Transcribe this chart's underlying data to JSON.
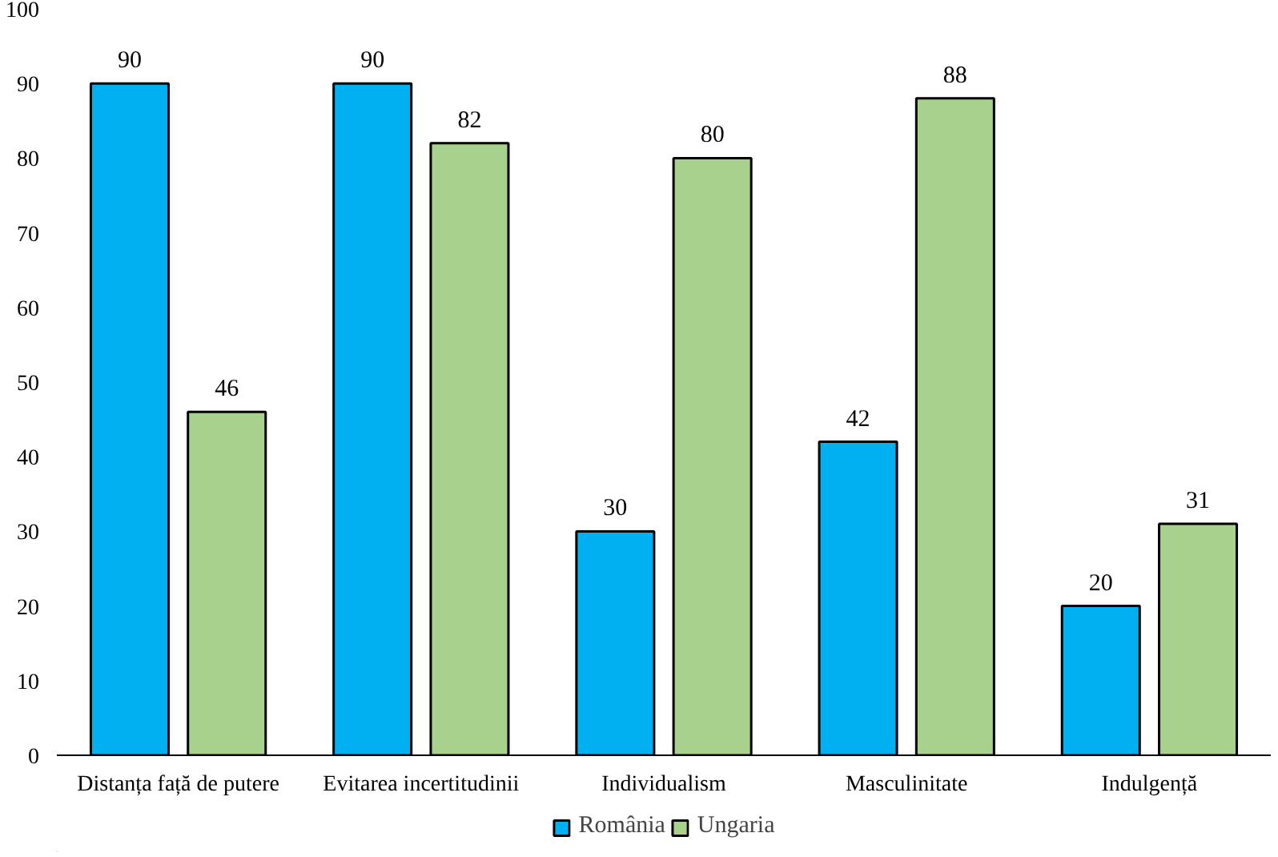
{
  "chart_data": {
    "type": "bar",
    "categories": [
      "Distanța față de putere",
      "Evitarea incertitudinii",
      "Individualism",
      "Masculinitate",
      "Indulgență"
    ],
    "series": [
      {
        "name": "România",
        "color": "#00b0f0",
        "values": [
          90,
          90,
          30,
          42,
          20
        ]
      },
      {
        "name": "Ungaria",
        "color": "#a9d18e",
        "values": [
          46,
          82,
          80,
          88,
          31
        ]
      }
    ],
    "ylim": [
      0,
      100
    ],
    "yticks": [
      0,
      10,
      20,
      30,
      40,
      50,
      60,
      70,
      80,
      90,
      100
    ],
    "grid": false,
    "legend": "bottom",
    "data_labels": true
  }
}
